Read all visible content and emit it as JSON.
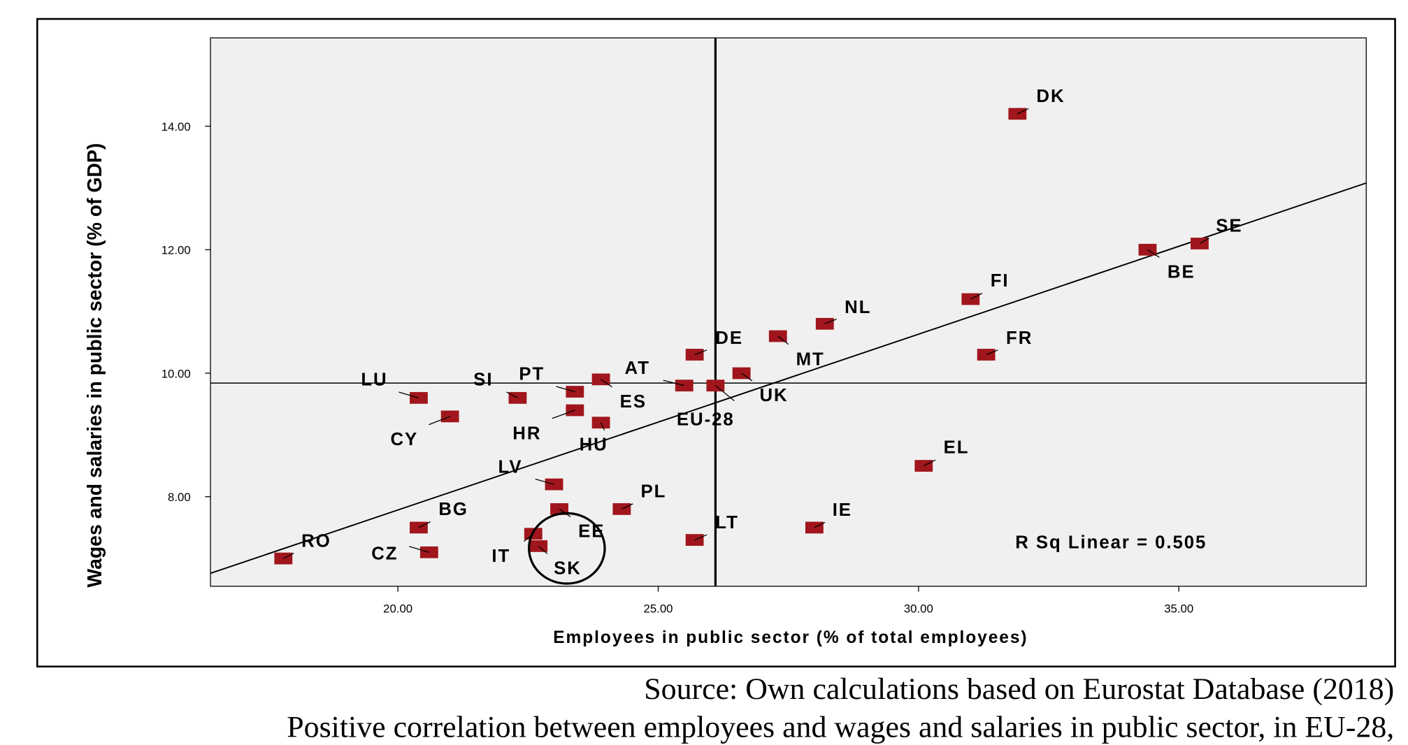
{
  "chart_data": {
    "type": "scatter",
    "xlabel": "Employees  in public sector (% of total employees)",
    "ylabel": "Wages and salaries in public sector (% of GDP)",
    "xlim": [
      16.4,
      38.6
    ],
    "ylim": [
      6.55,
      15.43
    ],
    "xticks": [
      {
        "v": 20,
        "label": "20.00"
      },
      {
        "v": 25,
        "label": "25.00"
      },
      {
        "v": 30,
        "label": "30.00"
      },
      {
        "v": 35,
        "label": "35.00"
      }
    ],
    "yticks": [
      {
        "v": 8,
        "label": "8.00"
      },
      {
        "v": 10,
        "label": "10.00"
      },
      {
        "v": 12,
        "label": "12.00"
      },
      {
        "v": 14,
        "label": "14.00"
      }
    ],
    "grid": false,
    "reference_lines": {
      "x": 26.1,
      "y": 9.84
    },
    "fit_line": {
      "type": "linear",
      "y_at_xmin": 6.76,
      "y_at_xmax": 13.08
    },
    "annotation": "R Sq Linear = 0.505",
    "highlight_circle_around": [
      "IT",
      "SK",
      "EE"
    ],
    "marker_color": "#a0161c",
    "points": [
      {
        "label": "DK",
        "x": 31.9,
        "y": 14.2
      },
      {
        "label": "SE",
        "x": 35.4,
        "y": 12.1
      },
      {
        "label": "BE",
        "x": 34.4,
        "y": 12.0
      },
      {
        "label": "FI",
        "x": 31.0,
        "y": 11.2
      },
      {
        "label": "NL",
        "x": 28.2,
        "y": 10.8
      },
      {
        "label": "FR",
        "x": 31.3,
        "y": 10.3
      },
      {
        "label": "MT",
        "x": 27.3,
        "y": 10.6
      },
      {
        "label": "DE",
        "x": 25.7,
        "y": 10.3
      },
      {
        "label": "UK",
        "x": 26.6,
        "y": 10.0
      },
      {
        "label": "AT",
        "x": 25.5,
        "y": 9.8
      },
      {
        "label": "EU-28",
        "x": 26.1,
        "y": 9.8
      },
      {
        "label": "ES",
        "x": 23.9,
        "y": 9.9
      },
      {
        "label": "PT",
        "x": 23.4,
        "y": 9.7
      },
      {
        "label": "SI",
        "x": 22.3,
        "y": 9.6
      },
      {
        "label": "LU",
        "x": 20.4,
        "y": 9.6
      },
      {
        "label": "CY",
        "x": 21.0,
        "y": 9.3
      },
      {
        "label": "HR",
        "x": 23.4,
        "y": 9.4
      },
      {
        "label": "HU",
        "x": 23.9,
        "y": 9.2
      },
      {
        "label": "LV",
        "x": 23.0,
        "y": 8.2
      },
      {
        "label": "PL",
        "x": 24.3,
        "y": 7.8
      },
      {
        "label": "EE",
        "x": 23.1,
        "y": 7.8
      },
      {
        "label": "IT",
        "x": 22.6,
        "y": 7.4
      },
      {
        "label": "SK",
        "x": 22.7,
        "y": 7.2
      },
      {
        "label": "BG",
        "x": 20.4,
        "y": 7.5
      },
      {
        "label": "CZ",
        "x": 20.6,
        "y": 7.1
      },
      {
        "label": "RO",
        "x": 17.8,
        "y": 7.0
      },
      {
        "label": "LT",
        "x": 25.7,
        "y": 7.3
      },
      {
        "label": "IE",
        "x": 28.0,
        "y": 7.5
      },
      {
        "label": "EL",
        "x": 30.1,
        "y": 8.5
      }
    ]
  },
  "caption": {
    "source": "Source: Own calculations based on Eurostat Database (2018)",
    "title": "Positive correlation between employees and wages and salaries in public sector, in EU-28,"
  }
}
